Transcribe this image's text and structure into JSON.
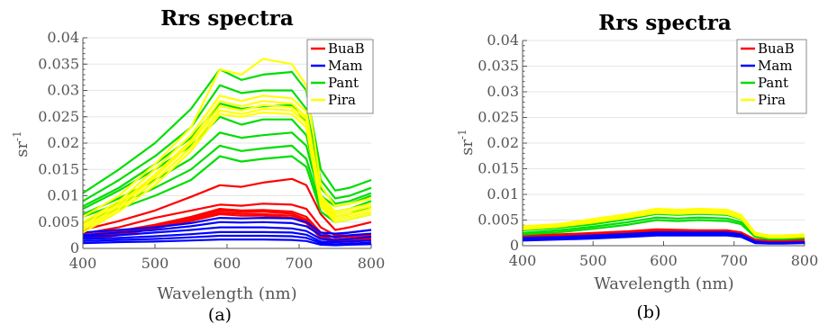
{
  "chart_data": [
    {
      "type": "line",
      "panel_label": "(a)",
      "title": "Rrs spectra",
      "xlabel": "Wavelength (nm)",
      "ylabel": "sr",
      "ylabel_superscript": "-1",
      "xlim": [
        400,
        800
      ],
      "ylim": [
        0,
        0.04
      ],
      "xticks": [
        "400",
        "500",
        "600",
        "700",
        "800"
      ],
      "yticks": [
        "0",
        "0.005",
        "0.01",
        "0.015",
        "0.02",
        "0.025",
        "0.03",
        "0.035",
        "0.04"
      ],
      "grid": "horizontal",
      "legend_position": "top-right",
      "x": [
        400,
        450,
        500,
        550,
        590,
        620,
        650,
        690,
        710,
        730,
        750,
        770,
        800
      ],
      "series": [
        {
          "name": "BuaB",
          "color": "#ff0000",
          "lines": [
            [
              0.0035,
              0.0052,
              0.0072,
              0.0098,
              0.012,
              0.0117,
              0.0125,
              0.0132,
              0.012,
              0.0065,
              0.0035,
              0.004,
              0.005
            ],
            [
              0.0028,
              0.004,
              0.0058,
              0.0072,
              0.0083,
              0.0081,
              0.0085,
              0.0083,
              0.0075,
              0.004,
              0.0025,
              0.003,
              0.0035
            ],
            [
              0.0025,
              0.0033,
              0.0045,
              0.006,
              0.0075,
              0.0072,
              0.0073,
              0.007,
              0.006,
              0.003,
              0.002,
              0.0022,
              0.0025
            ],
            [
              0.0022,
              0.003,
              0.0043,
              0.0058,
              0.0072,
              0.007,
              0.007,
              0.0066,
              0.0055,
              0.0025,
              0.0015,
              0.0018,
              0.002
            ],
            [
              0.002,
              0.0028,
              0.004,
              0.0055,
              0.0068,
              0.0066,
              0.0065,
              0.0062,
              0.0052,
              0.0022,
              0.0013,
              0.0015,
              0.0018
            ],
            [
              0.0018,
              0.0025,
              0.0038,
              0.0052,
              0.0065,
              0.0062,
              0.0062,
              0.0058,
              0.0048,
              0.002,
              0.0012,
              0.0013,
              0.0015
            ]
          ]
        },
        {
          "name": "Mam",
          "color": "#0000ff",
          "lines": [
            [
              0.003,
              0.0035,
              0.004,
              0.0048,
              0.0058,
              0.0057,
              0.0058,
              0.0057,
              0.005,
              0.003,
              0.0028,
              0.003,
              0.0035
            ],
            [
              0.0025,
              0.003,
              0.0035,
              0.0042,
              0.005,
              0.0049,
              0.005,
              0.0048,
              0.0042,
              0.0025,
              0.0022,
              0.0025,
              0.0028
            ],
            [
              0.0022,
              0.0025,
              0.003,
              0.0035,
              0.004,
              0.004,
              0.004,
              0.0038,
              0.0033,
              0.0018,
              0.0016,
              0.0018,
              0.0022
            ],
            [
              0.0018,
              0.002,
              0.0023,
              0.0027,
              0.0031,
              0.0031,
              0.0031,
              0.003,
              0.0026,
              0.0013,
              0.0012,
              0.0013,
              0.0015
            ],
            [
              0.0014,
              0.0016,
              0.0018,
              0.0021,
              0.0024,
              0.0024,
              0.0024,
              0.0023,
              0.002,
              0.001,
              0.0008,
              0.0009,
              0.0011
            ],
            [
              0.001,
              0.0012,
              0.0013,
              0.0015,
              0.0017,
              0.0017,
              0.0017,
              0.0016,
              0.0014,
              0.0007,
              0.0006,
              0.0007,
              0.0008
            ]
          ]
        },
        {
          "name": "Pant",
          "color": "#00dd00",
          "lines": [
            [
              0.0105,
              0.015,
              0.02,
              0.0265,
              0.034,
              0.032,
              0.033,
              0.0335,
              0.03,
              0.015,
              0.011,
              0.0115,
              0.013
            ],
            [
              0.009,
              0.013,
              0.0175,
              0.023,
              0.031,
              0.0295,
              0.03,
              0.03,
              0.0265,
              0.013,
              0.0095,
              0.01,
              0.0115
            ],
            [
              0.008,
              0.0115,
              0.016,
              0.021,
              0.0275,
              0.0265,
              0.027,
              0.0272,
              0.024,
              0.0115,
              0.0085,
              0.009,
              0.0105
            ],
            [
              0.0075,
              0.011,
              0.015,
              0.0195,
              0.025,
              0.0235,
              0.0245,
              0.0245,
              0.0215,
              0.01,
              0.008,
              0.0085,
              0.01
            ],
            [
              0.0065,
              0.0095,
              0.013,
              0.017,
              0.022,
              0.021,
              0.0215,
              0.022,
              0.0195,
              0.009,
              0.007,
              0.0075,
              0.009
            ],
            [
              0.006,
              0.0085,
              0.0115,
              0.015,
              0.0195,
              0.0185,
              0.019,
              0.0195,
              0.017,
              0.008,
              0.006,
              0.0065,
              0.008
            ],
            [
              0.005,
              0.0075,
              0.01,
              0.013,
              0.0175,
              0.0165,
              0.017,
              0.0175,
              0.0155,
              0.007,
              0.005,
              0.0055,
              0.0065
            ]
          ]
        },
        {
          "name": "Pira",
          "color": "#ffff00",
          "lines": [
            [
              0.006,
              0.01,
              0.016,
              0.023,
              0.034,
              0.033,
              0.036,
              0.035,
              0.031,
              0.012,
              0.008,
              0.0085,
              0.0095
            ],
            [
              0.005,
              0.009,
              0.015,
              0.0215,
              0.029,
              0.028,
              0.029,
              0.0285,
              0.026,
              0.01,
              0.007,
              0.0075,
              0.0085
            ],
            [
              0.0045,
              0.0085,
              0.014,
              0.0205,
              0.028,
              0.027,
              0.028,
              0.0275,
              0.025,
              0.0095,
              0.0065,
              0.007,
              0.008
            ],
            [
              0.004,
              0.008,
              0.0135,
              0.02,
              0.027,
              0.0262,
              0.0272,
              0.0268,
              0.0245,
              0.009,
              0.006,
              0.0065,
              0.0075
            ],
            [
              0.0035,
              0.0075,
              0.0128,
              0.0192,
              0.0262,
              0.0255,
              0.0265,
              0.0262,
              0.0238,
              0.0085,
              0.0055,
              0.006,
              0.007
            ],
            [
              0.003,
              0.007,
              0.012,
              0.0185,
              0.0255,
              0.025,
              0.0258,
              0.0255,
              0.023,
              0.008,
              0.005,
              0.0055,
              0.0065
            ]
          ]
        }
      ]
    },
    {
      "type": "line",
      "panel_label": "(b)",
      "title": "Rrs spectra",
      "xlabel": "Wavelength (nm)",
      "ylabel": "sr",
      "ylabel_superscript": "-1",
      "xlim": [
        400,
        800
      ],
      "ylim": [
        0,
        0.04
      ],
      "xticks": [
        "400",
        "500",
        "600",
        "700",
        "800"
      ],
      "yticks": [
        "0",
        "0.005",
        "0.01",
        "0.015",
        "0.02",
        "0.025",
        "0.03",
        "0.035",
        "0.04"
      ],
      "grid": "horizontal",
      "legend_position": "top-right",
      "x": [
        400,
        450,
        500,
        550,
        590,
        620,
        650,
        690,
        710,
        730,
        750,
        770,
        800
      ],
      "series": [
        {
          "name": "BuaB",
          "color": "#ff0000",
          "lines": [
            [
              0.002,
              0.0022,
              0.0025,
              0.0028,
              0.0032,
              0.0031,
              0.003,
              0.003,
              0.0026,
              0.0012,
              0.001,
              0.001,
              0.0012
            ],
            [
              0.0018,
              0.002,
              0.0023,
              0.0026,
              0.0029,
              0.0028,
              0.0027,
              0.0027,
              0.0023,
              0.001,
              0.0008,
              0.0009,
              0.001
            ],
            [
              0.0016,
              0.0018,
              0.0021,
              0.0024,
              0.0027,
              0.0026,
              0.0025,
              0.0025,
              0.0021,
              0.0009,
              0.0007,
              0.0008,
              0.0009
            ]
          ]
        },
        {
          "name": "Mam",
          "color": "#0000ff",
          "lines": [
            [
              0.0015,
              0.0017,
              0.002,
              0.0023,
              0.0026,
              0.0026,
              0.0026,
              0.0026,
              0.0022,
              0.0008,
              0.0006,
              0.0006,
              0.0007
            ],
            [
              0.0012,
              0.0014,
              0.0017,
              0.002,
              0.0023,
              0.0023,
              0.0023,
              0.0023,
              0.0019,
              0.0006,
              0.0005,
              0.0005,
              0.0006
            ],
            [
              0.001,
              0.0012,
              0.0014,
              0.0017,
              0.002,
              0.002,
              0.002,
              0.002,
              0.0017,
              0.0005,
              0.0004,
              0.0004,
              0.0005
            ]
          ]
        },
        {
          "name": "Pant",
          "color": "#00dd00",
          "lines": [
            [
              0.003,
              0.0035,
              0.0042,
              0.0052,
              0.0062,
              0.006,
              0.0062,
              0.006,
              0.0052,
              0.0022,
              0.0018,
              0.0018,
              0.002
            ],
            [
              0.0025,
              0.003,
              0.0037,
              0.0046,
              0.0055,
              0.0053,
              0.0055,
              0.0053,
              0.0046,
              0.0019,
              0.0015,
              0.0015,
              0.0017
            ],
            [
              0.0022,
              0.0026,
              0.0033,
              0.0041,
              0.005,
              0.0048,
              0.005,
              0.0048,
              0.0042,
              0.0017,
              0.0013,
              0.0013,
              0.0015
            ]
          ]
        },
        {
          "name": "Pira",
          "color": "#ffff00",
          "lines": [
            [
              0.0038,
              0.0042,
              0.0052,
              0.0062,
              0.0072,
              0.007,
              0.0072,
              0.007,
              0.006,
              0.0025,
              0.002,
              0.002,
              0.0022
            ],
            [
              0.0035,
              0.004,
              0.0048,
              0.0058,
              0.0068,
              0.0066,
              0.0068,
              0.0066,
              0.0056,
              0.0023,
              0.0018,
              0.0018,
              0.002
            ],
            [
              0.0032,
              0.0037,
              0.0045,
              0.0055,
              0.0064,
              0.0062,
              0.0064,
              0.0062,
              0.0053,
              0.0021,
              0.0016,
              0.0016,
              0.0018
            ]
          ]
        }
      ]
    }
  ]
}
